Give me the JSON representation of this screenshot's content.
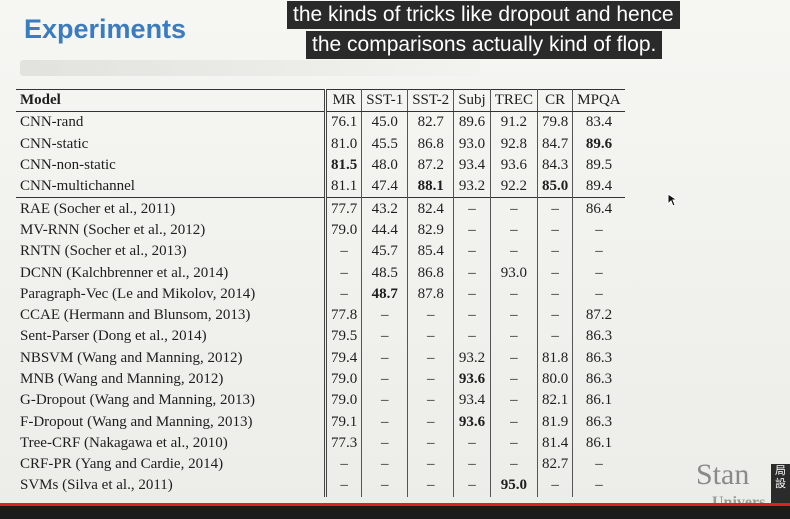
{
  "slide": {
    "title": "Experiments",
    "logo_line1": "Stan",
    "logo_line2": "Univers"
  },
  "captions": [
    "the kinds of tricks like dropout and hence",
    "the comparisons actually kind of flop."
  ],
  "side_badge": {
    "text": "局設"
  },
  "video": {
    "progress": 1.0
  },
  "table": {
    "header": [
      "Model",
      "MR",
      "SST-1",
      "SST-2",
      "Subj",
      "TREC",
      "CR",
      "MPQA"
    ],
    "group_cnn": [
      {
        "model": "CNN-rand",
        "vals": [
          "76.1",
          "45.0",
          "82.7",
          "89.6",
          "91.2",
          "79.8",
          "83.4"
        ]
      },
      {
        "model": "CNN-static",
        "vals": [
          "81.0",
          "45.5",
          "86.8",
          "93.0",
          "92.8",
          "84.7",
          "89.6"
        ]
      },
      {
        "model": "CNN-non-static",
        "vals": [
          "81.5",
          "48.0",
          "87.2",
          "93.4",
          "93.6",
          "84.3",
          "89.5"
        ]
      },
      {
        "model": "CNN-multichannel",
        "vals": [
          "81.1",
          "47.4",
          "88.1",
          "93.2",
          "92.2",
          "85.0",
          "89.4"
        ]
      }
    ],
    "group_other": [
      {
        "model": "RAE (Socher et al., 2011)",
        "vals": [
          "77.7",
          "43.2",
          "82.4",
          "–",
          "–",
          "–",
          "86.4"
        ]
      },
      {
        "model": "MV-RNN (Socher et al., 2012)",
        "vals": [
          "79.0",
          "44.4",
          "82.9",
          "–",
          "–",
          "–",
          "–"
        ]
      },
      {
        "model": "RNTN (Socher et al., 2013)",
        "vals": [
          "–",
          "45.7",
          "85.4",
          "–",
          "–",
          "–",
          "–"
        ]
      },
      {
        "model": "DCNN (Kalchbrenner et al., 2014)",
        "vals": [
          "–",
          "48.5",
          "86.8",
          "–",
          "93.0",
          "–",
          "–"
        ]
      },
      {
        "model": "Paragraph-Vec (Le and Mikolov, 2014)",
        "vals": [
          "–",
          "48.7",
          "87.8",
          "–",
          "–",
          "–",
          "–"
        ]
      },
      {
        "model": "CCAE (Hermann and Blunsom, 2013)",
        "vals": [
          "77.8",
          "–",
          "–",
          "–",
          "–",
          "–",
          "87.2"
        ]
      },
      {
        "model": "Sent-Parser (Dong et al., 2014)",
        "vals": [
          "79.5",
          "–",
          "–",
          "–",
          "–",
          "–",
          "86.3"
        ]
      },
      {
        "model": "NBSVM (Wang and Manning, 2012)",
        "vals": [
          "79.4",
          "–",
          "–",
          "93.2",
          "–",
          "81.8",
          "86.3"
        ]
      },
      {
        "model": "MNB (Wang and Manning, 2012)",
        "vals": [
          "79.0",
          "–",
          "–",
          "93.6",
          "–",
          "80.0",
          "86.3"
        ]
      },
      {
        "model": "G-Dropout (Wang and Manning, 2013)",
        "vals": [
          "79.0",
          "–",
          "–",
          "93.4",
          "–",
          "82.1",
          "86.1"
        ]
      },
      {
        "model": "F-Dropout (Wang and Manning, 2013)",
        "vals": [
          "79.1",
          "–",
          "–",
          "93.6",
          "–",
          "81.9",
          "86.3"
        ]
      },
      {
        "model": "Tree-CRF (Nakagawa et al., 2010)",
        "vals": [
          "77.3",
          "–",
          "–",
          "–",
          "–",
          "81.4",
          "86.1"
        ]
      },
      {
        "model": "CRF-PR (Yang and Cardie, 2014)",
        "vals": [
          "–",
          "–",
          "–",
          "–",
          "–",
          "82.7",
          "–"
        ]
      },
      {
        "model": "SVMs (Silva et al., 2011)",
        "vals": [
          "–",
          "–",
          "–",
          "–",
          "95.0",
          "–",
          "–"
        ]
      }
    ],
    "bold_cells": [
      "0-2-0",
      "0-3-2",
      "0-1-6",
      "0-3-5",
      "1-4-1",
      "1-8-3",
      "1-10-3",
      "1-13-4"
    ]
  }
}
